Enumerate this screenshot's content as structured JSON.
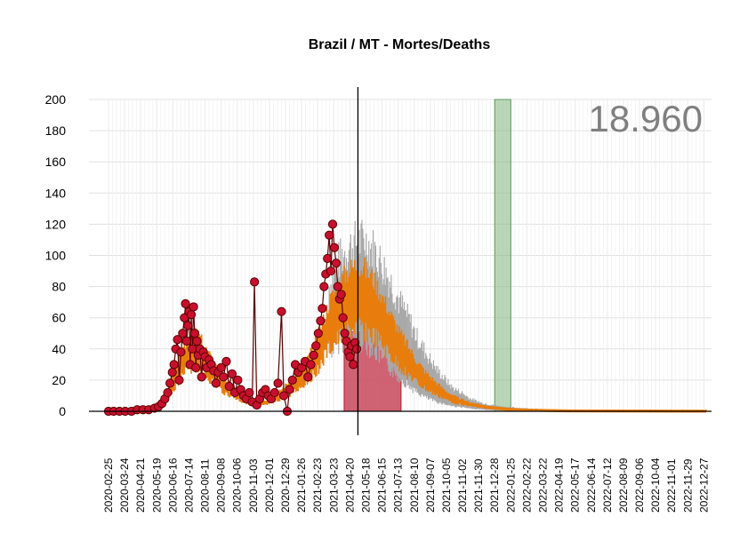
{
  "chart_data": {
    "type": "line",
    "title": "Brazil / MT - Mortes/Deaths",
    "total_label": "18.960",
    "ylim": [
      0,
      200
    ],
    "y_ticks": [
      0,
      20,
      40,
      60,
      80,
      100,
      120,
      140,
      160,
      180,
      200
    ],
    "x_range": [
      "2020-02-25",
      "2022-12-31"
    ],
    "x_tick_labels": [
      "2020-02-25",
      "2020-03-24",
      "2020-04-21",
      "2020-05-19",
      "2020-06-16",
      "2020-07-14",
      "2020-08-11",
      "2020-09-08",
      "2020-10-06",
      "2020-11-03",
      "2020-12-01",
      "2020-12-29",
      "2021-01-26",
      "2021-02-23",
      "2021-03-23",
      "2021-04-20",
      "2021-05-18",
      "2021-06-15",
      "2021-07-13",
      "2021-08-10",
      "2021-09-07",
      "2021-10-05",
      "2021-11-02",
      "2021-11-30",
      "2021-12-28",
      "2022-01-25",
      "2022-02-22",
      "2022-03-22",
      "2022-04-19",
      "2022-05-17",
      "2022-06-14",
      "2022-07-12",
      "2022-08-09",
      "2022-09-06",
      "2022-10-04",
      "2022-11-01",
      "2022-11-29",
      "2022-12-27"
    ],
    "grid": true,
    "current_date": "2021-05-04",
    "red_region": {
      "start": "2021-04-10",
      "end": "2021-07-18",
      "height": 51
    },
    "green_region": {
      "start": "2021-12-28",
      "end": "2022-01-25",
      "height": 200
    },
    "observed_points": [
      [
        "2020-02-25",
        0
      ],
      [
        "2020-03-05",
        0
      ],
      [
        "2020-03-15",
        0
      ],
      [
        "2020-03-25",
        0
      ],
      [
        "2020-04-05",
        0
      ],
      [
        "2020-04-15",
        1
      ],
      [
        "2020-04-25",
        1
      ],
      [
        "2020-05-05",
        1
      ],
      [
        "2020-05-15",
        2
      ],
      [
        "2020-05-22",
        3
      ],
      [
        "2020-05-28",
        5
      ],
      [
        "2020-06-02",
        8
      ],
      [
        "2020-06-07",
        12
      ],
      [
        "2020-06-11",
        18
      ],
      [
        "2020-06-15",
        25
      ],
      [
        "2020-06-18",
        30
      ],
      [
        "2020-06-21",
        40
      ],
      [
        "2020-06-24",
        46
      ],
      [
        "2020-06-27",
        20
      ],
      [
        "2020-06-30",
        38
      ],
      [
        "2020-07-03",
        50
      ],
      [
        "2020-07-06",
        60
      ],
      [
        "2020-07-08",
        69
      ],
      [
        "2020-07-10",
        45
      ],
      [
        "2020-07-12",
        55
      ],
      [
        "2020-07-14",
        64
      ],
      [
        "2020-07-16",
        30
      ],
      [
        "2020-07-18",
        62
      ],
      [
        "2020-07-20",
        40
      ],
      [
        "2020-07-22",
        67
      ],
      [
        "2020-07-24",
        50
      ],
      [
        "2020-07-26",
        28
      ],
      [
        "2020-07-28",
        45
      ],
      [
        "2020-07-30",
        36
      ],
      [
        "2020-08-02",
        40
      ],
      [
        "2020-08-05",
        22
      ],
      [
        "2020-08-08",
        38
      ],
      [
        "2020-08-11",
        35
      ],
      [
        "2020-08-14",
        28
      ],
      [
        "2020-08-18",
        33
      ],
      [
        "2020-08-22",
        30
      ],
      [
        "2020-08-26",
        26
      ],
      [
        "2020-08-30",
        18
      ],
      [
        "2020-09-03",
        25
      ],
      [
        "2020-09-08",
        28
      ],
      [
        "2020-09-12",
        22
      ],
      [
        "2020-09-17",
        32
      ],
      [
        "2020-09-22",
        16
      ],
      [
        "2020-09-27",
        24
      ],
      [
        "2020-10-02",
        12
      ],
      [
        "2020-10-07",
        20
      ],
      [
        "2020-10-12",
        14
      ],
      [
        "2020-10-17",
        10
      ],
      [
        "2020-10-22",
        8
      ],
      [
        "2020-10-27",
        12
      ],
      [
        "2020-11-01",
        6
      ],
      [
        "2020-11-05",
        83
      ],
      [
        "2020-11-09",
        4
      ],
      [
        "2020-11-14",
        8
      ],
      [
        "2020-11-19",
        12
      ],
      [
        "2020-11-24",
        14
      ],
      [
        "2020-11-29",
        10
      ],
      [
        "2020-12-04",
        8
      ],
      [
        "2020-12-10",
        12
      ],
      [
        "2020-12-16",
        18
      ],
      [
        "2020-12-22",
        64
      ],
      [
        "2020-12-26",
        10
      ],
      [
        "2021-01-01",
        0
      ],
      [
        "2021-01-05",
        14
      ],
      [
        "2021-01-10",
        20
      ],
      [
        "2021-01-15",
        30
      ],
      [
        "2021-01-20",
        25
      ],
      [
        "2021-01-26",
        28
      ],
      [
        "2021-02-01",
        32
      ],
      [
        "2021-02-06",
        22
      ],
      [
        "2021-02-11",
        30
      ],
      [
        "2021-02-16",
        36
      ],
      [
        "2021-02-20",
        42
      ],
      [
        "2021-02-24",
        50
      ],
      [
        "2021-02-28",
        58
      ],
      [
        "2021-03-03",
        66
      ],
      [
        "2021-03-06",
        80
      ],
      [
        "2021-03-09",
        88
      ],
      [
        "2021-03-12",
        98
      ],
      [
        "2021-03-15",
        113
      ],
      [
        "2021-03-18",
        90
      ],
      [
        "2021-03-21",
        120
      ],
      [
        "2021-03-24",
        105
      ],
      [
        "2021-03-27",
        95
      ],
      [
        "2021-03-30",
        80
      ],
      [
        "2021-04-02",
        72
      ],
      [
        "2021-04-05",
        75
      ],
      [
        "2021-04-08",
        60
      ],
      [
        "2021-04-11",
        50
      ],
      [
        "2021-04-14",
        45
      ],
      [
        "2021-04-17",
        38
      ],
      [
        "2021-04-20",
        35
      ],
      [
        "2021-04-23",
        42
      ],
      [
        "2021-04-26",
        30
      ],
      [
        "2021-04-29",
        44
      ],
      [
        "2021-05-02",
        40
      ]
    ],
    "fitted_series": [
      [
        "2020-02-25",
        0
      ],
      [
        "2020-04-01",
        0
      ],
      [
        "2020-05-01",
        1
      ],
      [
        "2020-05-20",
        3
      ],
      [
        "2020-06-05",
        10
      ],
      [
        "2020-06-20",
        22
      ],
      [
        "2020-07-05",
        33
      ],
      [
        "2020-07-20",
        40
      ],
      [
        "2020-08-01",
        38
      ],
      [
        "2020-08-15",
        30
      ],
      [
        "2020-09-01",
        22
      ],
      [
        "2020-09-15",
        16
      ],
      [
        "2020-10-01",
        12
      ],
      [
        "2020-10-15",
        8
      ],
      [
        "2020-11-01",
        6
      ],
      [
        "2020-11-15",
        5
      ],
      [
        "2020-12-01",
        6
      ],
      [
        "2020-12-15",
        9
      ],
      [
        "2021-01-01",
        14
      ],
      [
        "2021-01-15",
        18
      ],
      [
        "2021-02-01",
        24
      ],
      [
        "2021-02-15",
        32
      ],
      [
        "2021-03-01",
        42
      ],
      [
        "2021-03-15",
        55
      ],
      [
        "2021-04-01",
        64
      ],
      [
        "2021-04-15",
        70
      ],
      [
        "2021-05-01",
        74
      ],
      [
        "2021-05-15",
        72
      ],
      [
        "2021-06-01",
        66
      ],
      [
        "2021-06-15",
        58
      ],
      [
        "2021-07-01",
        48
      ],
      [
        "2021-07-15",
        40
      ],
      [
        "2021-08-01",
        32
      ],
      [
        "2021-08-15",
        25
      ],
      [
        "2021-09-01",
        19
      ],
      [
        "2021-09-15",
        15
      ],
      [
        "2021-10-01",
        11
      ],
      [
        "2021-10-15",
        8
      ],
      [
        "2021-11-01",
        6
      ],
      [
        "2021-11-15",
        4.5
      ],
      [
        "2021-12-01",
        3.5
      ],
      [
        "2021-12-15",
        2.5
      ],
      [
        "2022-01-01",
        2
      ],
      [
        "2022-01-15",
        1.5
      ],
      [
        "2022-02-01",
        1
      ],
      [
        "2022-03-01",
        0.6
      ],
      [
        "2022-04-01",
        0.4
      ],
      [
        "2022-05-01",
        0.2
      ],
      [
        "2022-07-01",
        0.1
      ],
      [
        "2022-10-01",
        0.05
      ],
      [
        "2022-12-31",
        0
      ]
    ],
    "band_upper": [
      [
        "2021-03-15",
        68
      ],
      [
        "2021-04-01",
        82
      ],
      [
        "2021-04-15",
        88
      ],
      [
        "2021-05-01",
        92
      ],
      [
        "2021-05-15",
        93
      ],
      [
        "2021-06-01",
        88
      ],
      [
        "2021-06-15",
        80
      ],
      [
        "2021-07-01",
        70
      ],
      [
        "2021-07-15",
        60
      ],
      [
        "2021-08-01",
        50
      ],
      [
        "2021-08-15",
        40
      ],
      [
        "2021-09-01",
        31
      ],
      [
        "2021-09-15",
        24
      ],
      [
        "2021-10-01",
        18
      ],
      [
        "2021-10-15",
        13
      ],
      [
        "2021-11-01",
        10
      ],
      [
        "2021-11-15",
        7
      ],
      [
        "2021-12-01",
        5
      ],
      [
        "2021-12-15",
        4
      ],
      [
        "2022-01-01",
        3
      ],
      [
        "2022-01-15",
        2.5
      ],
      [
        "2022-02-01",
        2
      ],
      [
        "2022-03-01",
        1.5
      ],
      [
        "2022-04-01",
        1
      ],
      [
        "2022-06-01",
        0.5
      ],
      [
        "2022-09-01",
        0.2
      ],
      [
        "2022-12-31",
        0.1
      ]
    ],
    "band_lower": [
      [
        "2021-03-15",
        45
      ],
      [
        "2021-04-01",
        52
      ],
      [
        "2021-04-15",
        55
      ],
      [
        "2021-05-01",
        55
      ],
      [
        "2021-05-15",
        52
      ],
      [
        "2021-06-01",
        46
      ],
      [
        "2021-06-15",
        39
      ],
      [
        "2021-07-01",
        31
      ],
      [
        "2021-07-15",
        25
      ],
      [
        "2021-08-01",
        19
      ],
      [
        "2021-08-15",
        14
      ],
      [
        "2021-09-01",
        10
      ],
      [
        "2021-09-15",
        7.5
      ],
      [
        "2021-10-01",
        5.5
      ],
      [
        "2021-10-15",
        4
      ],
      [
        "2021-11-01",
        3
      ],
      [
        "2021-11-15",
        2
      ],
      [
        "2021-12-01",
        1.5
      ],
      [
        "2021-12-15",
        1
      ],
      [
        "2022-01-01",
        0.8
      ],
      [
        "2022-01-15",
        0.6
      ],
      [
        "2022-02-01",
        0.4
      ],
      [
        "2022-03-01",
        0.3
      ],
      [
        "2022-04-01",
        0.2
      ],
      [
        "2022-06-01",
        0.1
      ],
      [
        "2022-09-01",
        0.05
      ],
      [
        "2022-12-31",
        0
      ]
    ],
    "colors": {
      "points_fill": "#c8102e",
      "points_stroke": "#5a0000",
      "fitted_line": "#e87d0c",
      "band": "#a9a9a9",
      "red_region": "#c8485a",
      "green_region": "#7fb77e",
      "grid": "#e0e0e0",
      "total_label": "#7f7f7f"
    }
  }
}
